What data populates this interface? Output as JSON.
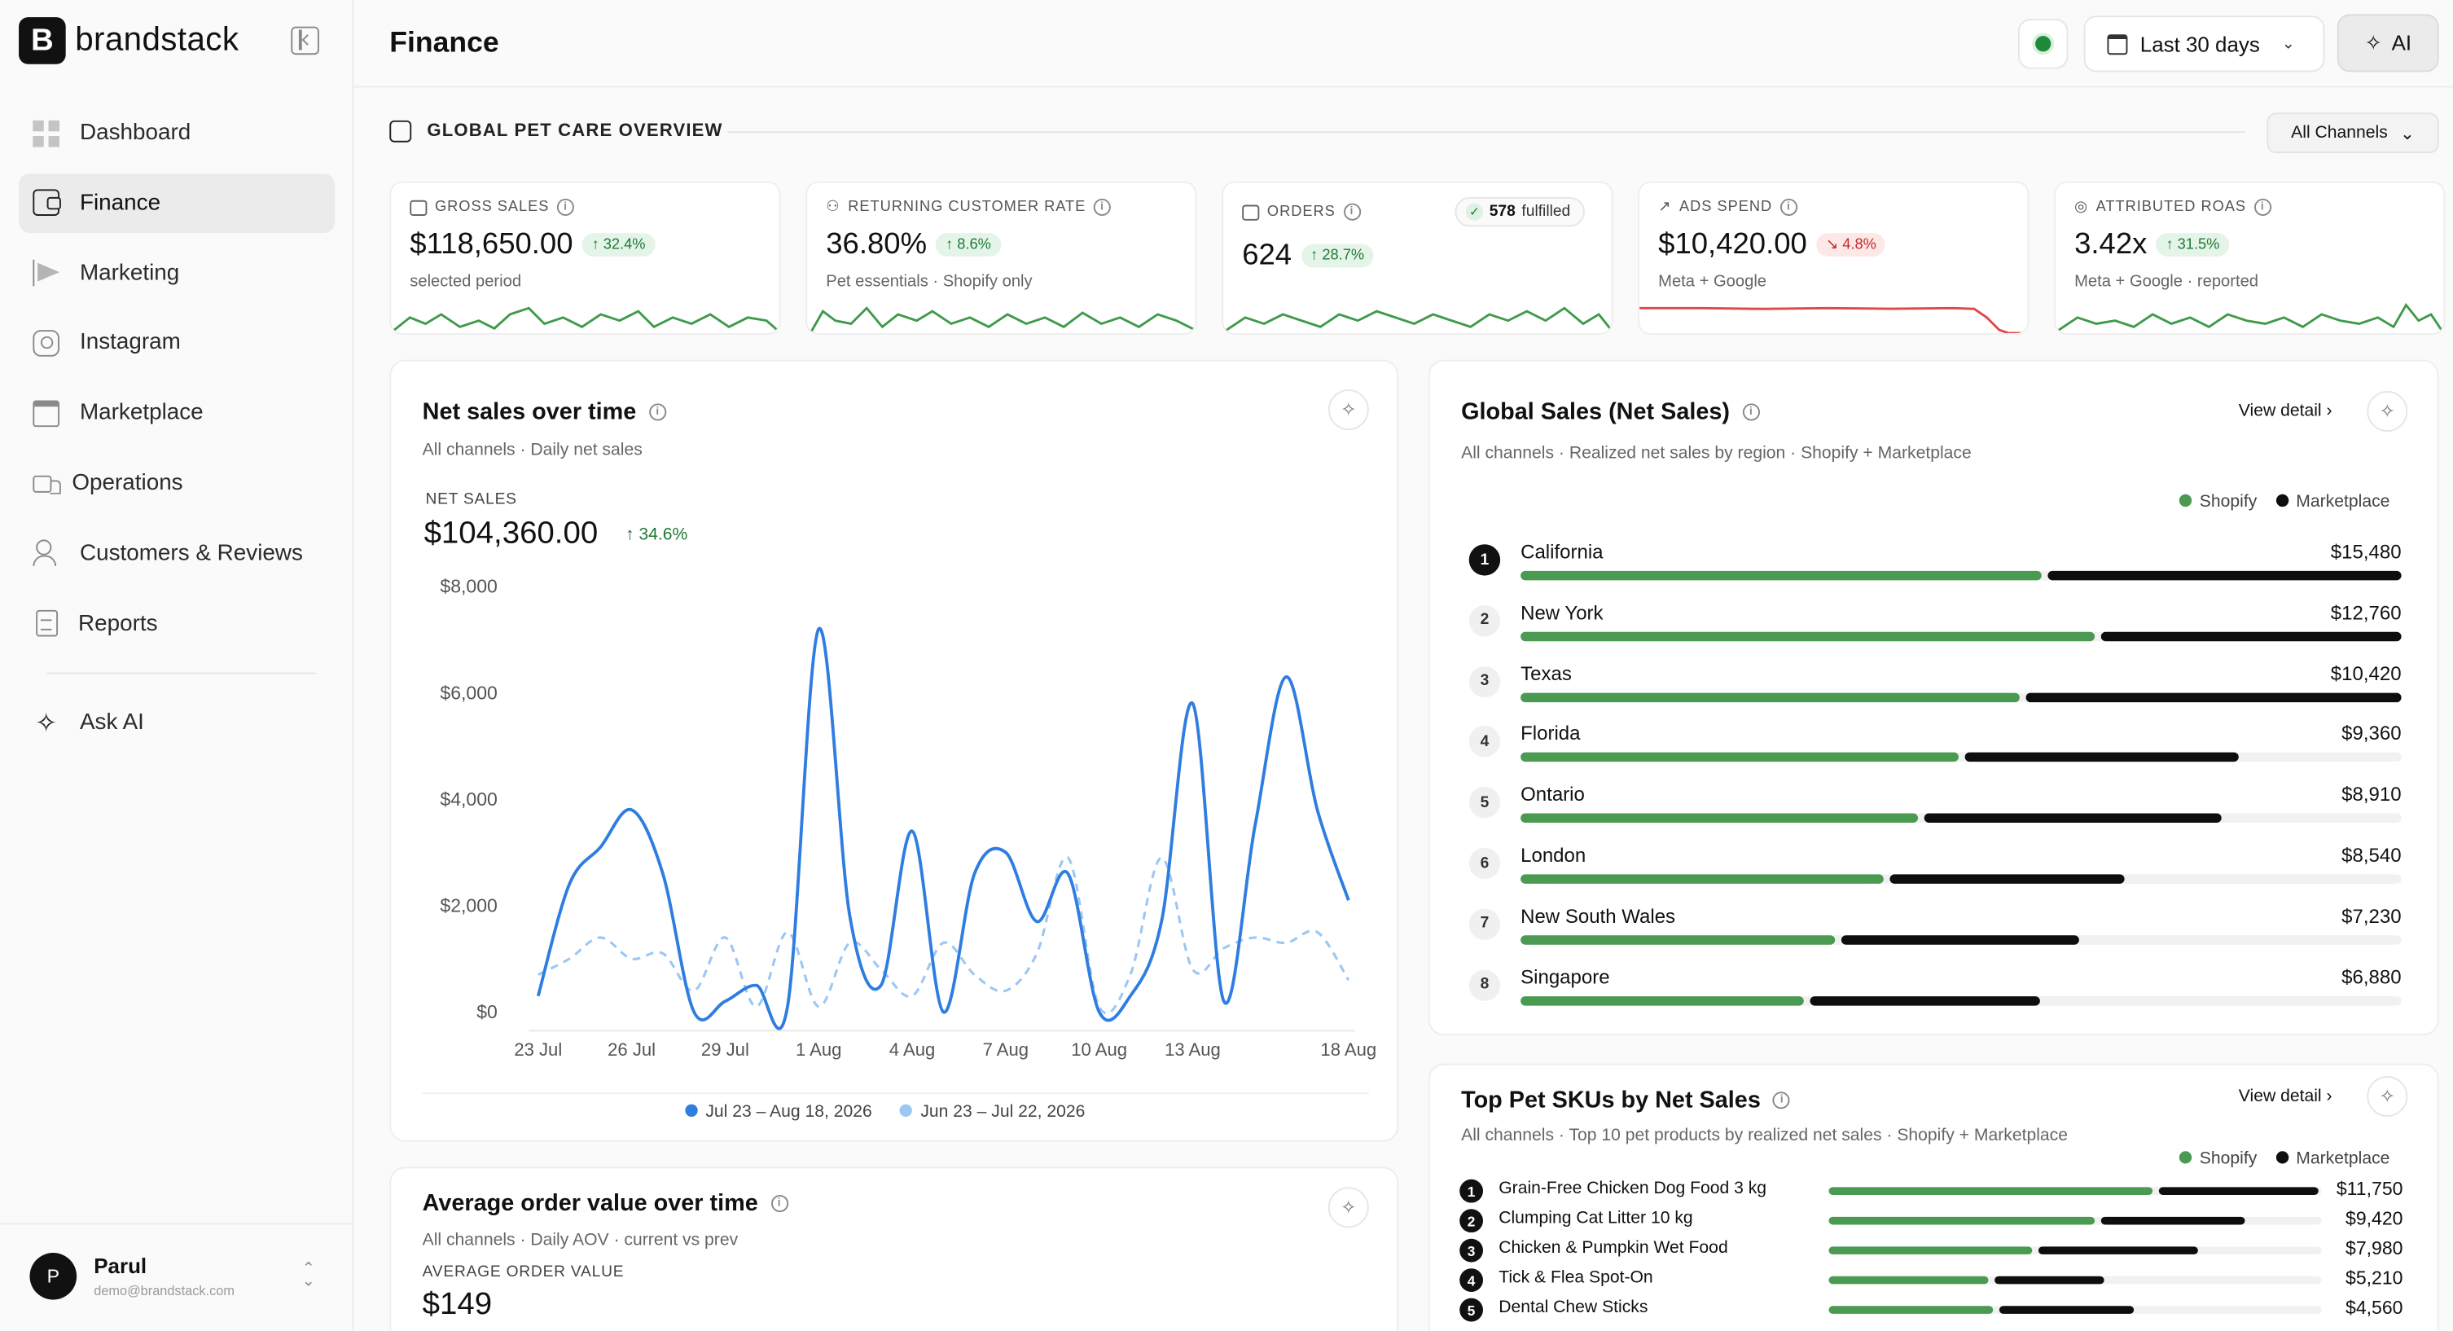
{
  "app": {
    "brand_mark": "B",
    "brand_name": "brandstack"
  },
  "sidebar": {
    "items": [
      {
        "label": "Dashboard",
        "icon": "grid-icon"
      },
      {
        "label": "Finance",
        "icon": "wallet-icon",
        "active": true
      },
      {
        "label": "Marketing",
        "icon": "megaphone-icon"
      },
      {
        "label": "Instagram",
        "icon": "instagram-icon"
      },
      {
        "label": "Marketplace",
        "icon": "store-icon"
      },
      {
        "label": "Operations",
        "icon": "truck-icon"
      },
      {
        "label": "Customers & Reviews",
        "icon": "users-icon"
      },
      {
        "label": "Reports",
        "icon": "document-icon"
      }
    ],
    "ask_ai": "Ask AI",
    "user": {
      "initial": "P",
      "name": "Parul",
      "email": "demo@brandstack.com"
    }
  },
  "header": {
    "title": "Finance",
    "date_range": "Last 30 days",
    "ai_label": "AI",
    "status_color": "#1f8a3a"
  },
  "section": {
    "title": "GLOBAL PET CARE OVERVIEW",
    "channels": "All Channels"
  },
  "kpis": [
    {
      "label": "GROSS SALES",
      "value": "$118,650.00",
      "delta": "32.4%",
      "direction": "up",
      "sub": "selected period",
      "spark_color": "#3f9a4b"
    },
    {
      "label": "RETURNING CUSTOMER RATE",
      "value": "36.80%",
      "delta": "8.6%",
      "direction": "up",
      "sub": "Pet essentials · Shopify only",
      "spark_color": "#3f9a4b"
    },
    {
      "label": "ORDERS",
      "value": "624",
      "delta": "28.7%",
      "direction": "up",
      "sub": "",
      "fulfilled_count": "578",
      "fulfilled_label": "fulfilled",
      "spark_color": "#3f9a4b"
    },
    {
      "label": "ADS SPEND",
      "value": "$10,420.00",
      "delta": "4.8%",
      "direction": "down",
      "sub": "Meta + Google",
      "spark_color": "#e04848"
    },
    {
      "label": "ATTRIBUTED ROAS",
      "value": "3.42x",
      "delta": "31.5%",
      "direction": "up",
      "sub": "Meta + Google · reported",
      "spark_color": "#3f9a4b"
    }
  ],
  "net_sales": {
    "title": "Net sales over time",
    "subtitle": "All channels · Daily net sales",
    "metric_label": "NET SALES",
    "metric_value": "$104,360.00",
    "delta": "34.6%",
    "legend_current": "Jul 23 – Aug 18, 2026",
    "legend_previous": "Jun 23 – Jul 22, 2026",
    "current_color": "#2f7de1",
    "previous_color": "#9cc7f2"
  },
  "aov": {
    "title": "Average order value over time",
    "subtitle": "All channels · Daily AOV · current vs prev",
    "metric_label": "AVERAGE ORDER VALUE",
    "metric_value": "$149"
  },
  "global_sales": {
    "title": "Global Sales (Net Sales)",
    "subtitle": "All channels · Realized net sales by region · Shopify + Marketplace",
    "view_detail": "View detail",
    "legend_shopify": "Shopify",
    "legend_marketplace": "Marketplace",
    "shopify_color": "#4a9a52",
    "marketplace_color": "#0e0e0e",
    "regions": [
      {
        "rank": "1",
        "name": "California",
        "value": "$15,480",
        "shopify": 0.595,
        "marketplace": 0.405
      },
      {
        "rank": "2",
        "name": "New York",
        "value": "$12,760",
        "shopify": 0.655,
        "marketplace": 0.345
      },
      {
        "rank": "3",
        "name": "Texas",
        "value": "$10,420",
        "shopify": 0.57,
        "marketplace": 0.43
      },
      {
        "rank": "4",
        "name": "Florida",
        "value": "$9,360",
        "shopify": 0.5,
        "marketplace": 0.315
      },
      {
        "rank": "5",
        "name": "Ontario",
        "value": "$8,910",
        "shopify": 0.455,
        "marketplace": 0.34
      },
      {
        "rank": "6",
        "name": "London",
        "value": "$8,540",
        "shopify": 0.415,
        "marketplace": 0.27
      },
      {
        "rank": "7",
        "name": "New South Wales",
        "value": "$7,230",
        "shopify": 0.36,
        "marketplace": 0.275
      },
      {
        "rank": "8",
        "name": "Singapore",
        "value": "$6,880",
        "shopify": 0.325,
        "marketplace": 0.265
      }
    ]
  },
  "top_skus": {
    "title": "Top Pet SKUs by Net Sales",
    "subtitle": "All channels · Top 10 pet products by realized net sales · Shopify + Marketplace",
    "view_detail": "View detail",
    "legend_shopify": "Shopify",
    "legend_marketplace": "Marketplace",
    "items": [
      {
        "rank": "1",
        "name": "Grain-Free Chicken Dog Food 3 kg",
        "value": "$11,750",
        "shopify": 0.665,
        "marketplace": 0.33
      },
      {
        "rank": "2",
        "name": "Clumping Cat Litter 10 kg",
        "value": "$9,420",
        "shopify": 0.545,
        "marketplace": 0.3
      },
      {
        "rank": "3",
        "name": "Chicken & Pumpkin Wet Food",
        "value": "$7,980",
        "shopify": 0.42,
        "marketplace": 0.33
      },
      {
        "rank": "4",
        "name": "Tick & Flea Spot-On",
        "value": "$5,210",
        "shopify": 0.33,
        "marketplace": 0.23
      },
      {
        "rank": "5",
        "name": "Dental Chew Sticks",
        "value": "$4,560",
        "shopify": 0.34,
        "marketplace": 0.28
      }
    ]
  },
  "chart_data": {
    "type": "line",
    "ylim": [
      0,
      8000
    ],
    "yticks": [
      "$8,000",
      "$6,000",
      "$4,000",
      "$2,000",
      "$0"
    ],
    "ytick_values": [
      8000,
      6000,
      4000,
      2000,
      0
    ],
    "xticks": [
      "23 Jul",
      "26 Jul",
      "29 Jul",
      "1 Aug",
      "4 Aug",
      "7 Aug",
      "10 Aug",
      "13 Aug",
      "18 Aug"
    ],
    "xtick_days": [
      0,
      3,
      6,
      9,
      12,
      15,
      18,
      21,
      26
    ],
    "series": [
      {
        "name": "Jul 23 – Aug 18, 2026",
        "values": [
          300,
          2400,
          3100,
          3800,
          2600,
          0,
          200,
          500,
          100,
          7200,
          1800,
          500,
          3400,
          0,
          2600,
          3000,
          1700,
          2600,
          0,
          300,
          1700,
          5800,
          200,
          3500,
          6300,
          3800,
          2100
        ]
      },
      {
        "name": "Jun 23 – Jul 22, 2026",
        "values": [
          700,
          1000,
          1400,
          1000,
          1100,
          400,
          1400,
          100,
          1500,
          100,
          1300,
          800,
          300,
          1300,
          700,
          400,
          1100,
          2900,
          100,
          700,
          2900,
          800,
          1200,
          1400,
          1300,
          1500,
          600
        ]
      }
    ]
  }
}
